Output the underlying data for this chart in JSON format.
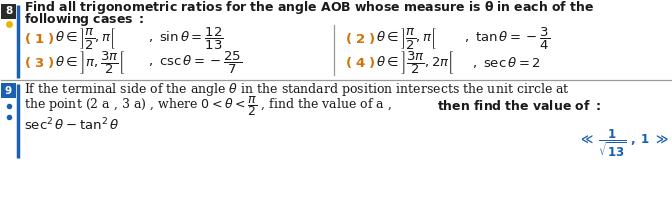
{
  "bg_color": "#ffffff",
  "orange": "#d4720a",
  "black": "#1a1a1a",
  "blue": "#1a5fb4",
  "badge8_bg": "#2a2a2a",
  "yellow_dot": "#e8b800",
  "divider_color": "#999999",
  "title1": "Find all trigonometric ratios for the angle AOB whose measure is $\\boldsymbol{\\theta}$ in each of the",
  "title2": "following cases :",
  "q9_l1": "If the terminal side of the angle $\\theta$ in the standard position intersects the unit circle at",
  "q9_l2a": "the point (2 a , 3 a) , where $0 < \\theta < \\dfrac{\\pi}{2}$ , find the value of a ,",
  "q9_l2b": "then find the value of :",
  "q9_l3": "$\\sec^2 \\theta - \\tan^2 \\theta$",
  "figw": 6.72,
  "figh": 2.18,
  "dpi": 100
}
